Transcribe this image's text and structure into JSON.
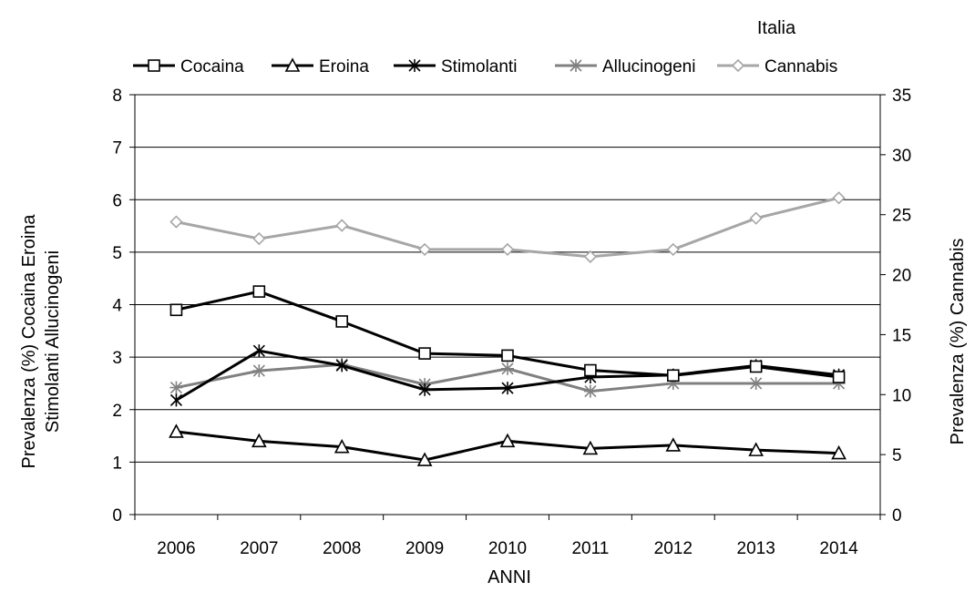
{
  "chart_data": {
    "type": "line",
    "title": "Italia",
    "xlabel": "ANNI",
    "ylabel_left": "Prevalenza (%) Cocaina Eroina Stimolanti Allucinogeni",
    "ylabel_left_lines": [
      "Prevalenza (%) Cocaina Eroina",
      "Stimolanti Allucinogeni"
    ],
    "ylabel_right": "Prevalenza (%) Cannabis",
    "categories": [
      "2006",
      "2007",
      "2008",
      "2009",
      "2010",
      "2011",
      "2012",
      "2013",
      "2014"
    ],
    "ylim_left": [
      0,
      8
    ],
    "yticks_left": [
      0,
      1,
      2,
      3,
      4,
      5,
      6,
      7,
      8
    ],
    "ylim_right": [
      0,
      35
    ],
    "yticks_right": [
      0,
      5,
      10,
      15,
      20,
      25,
      30,
      35
    ],
    "grid": true,
    "legend_position": "top",
    "series": [
      {
        "name": "Cocaina",
        "axis": "left",
        "marker": "square",
        "color": "#000000",
        "values": [
          3.9,
          4.25,
          3.68,
          3.07,
          3.03,
          2.75,
          2.65,
          2.82,
          2.62
        ]
      },
      {
        "name": "Eroina",
        "axis": "left",
        "marker": "triangle",
        "color": "#000000",
        "values": [
          1.58,
          1.4,
          1.29,
          1.04,
          1.4,
          1.26,
          1.32,
          1.23,
          1.17
        ]
      },
      {
        "name": "Stimolanti",
        "axis": "left",
        "marker": "x-star",
        "color": "#000000",
        "values": [
          2.18,
          3.12,
          2.84,
          2.38,
          2.41,
          2.62,
          2.66,
          2.84,
          2.66
        ]
      },
      {
        "name": "Allucinogeni",
        "axis": "left",
        "marker": "asterisk",
        "color": "#808080",
        "values": [
          2.42,
          2.74,
          2.86,
          2.48,
          2.78,
          2.35,
          2.5,
          2.5,
          2.5
        ]
      },
      {
        "name": "Cannabis",
        "axis": "right",
        "marker": "diamond",
        "color": "#a6a6a6",
        "values": [
          24.4,
          23.0,
          24.1,
          22.1,
          22.1,
          21.5,
          22.1,
          24.7,
          26.4
        ]
      }
    ]
  }
}
